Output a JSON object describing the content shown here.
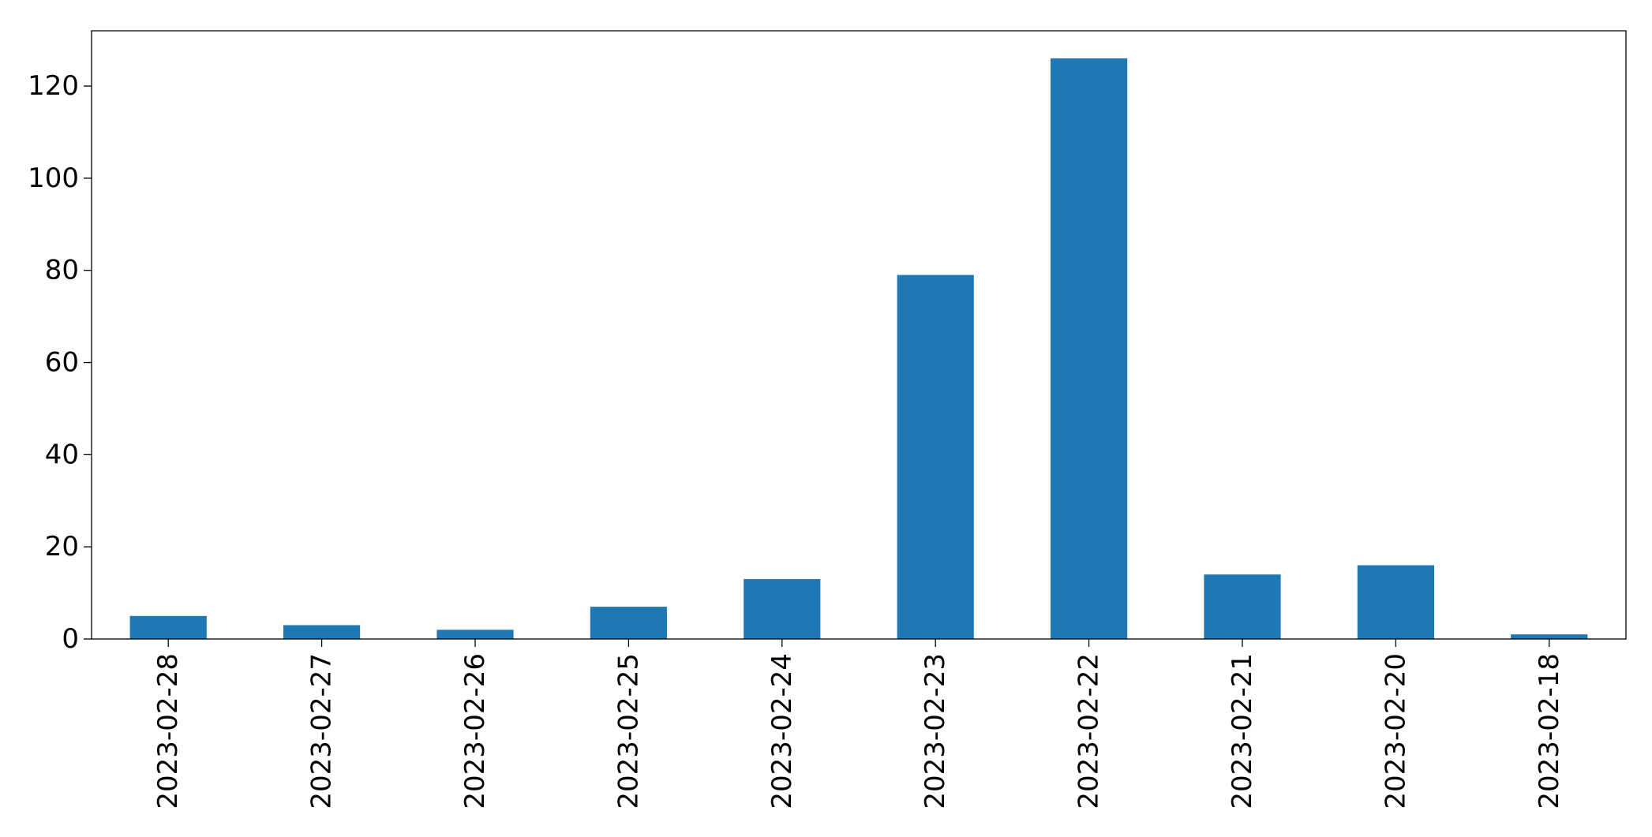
{
  "chart_data": {
    "type": "bar",
    "categories": [
      "2023-02-28",
      "2023-02-27",
      "2023-02-26",
      "2023-02-25",
      "2023-02-24",
      "2023-02-23",
      "2023-02-22",
      "2023-02-21",
      "2023-02-20",
      "2023-02-18"
    ],
    "values": [
      5,
      3,
      2,
      7,
      13,
      79,
      126,
      14,
      16,
      1
    ],
    "title": "",
    "xlabel": "",
    "ylabel": "",
    "ylim": [
      0,
      132
    ],
    "yticks": [
      0,
      20,
      40,
      60,
      80,
      100,
      120
    ],
    "grid": false,
    "bar_color": "#1f77b4"
  }
}
